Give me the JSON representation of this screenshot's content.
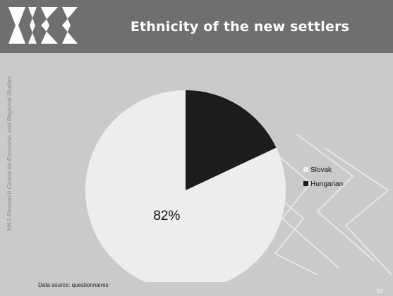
{
  "header": {
    "title": "Ethnicity of the new settlers"
  },
  "side_caption": "HAS Research Centre for Economic and Regional Studies",
  "footer": {
    "source": "Data source: questionnaires",
    "page_number": "10"
  },
  "colors": {
    "header_bg": "#6f6f6f",
    "slide_bg": "#cacaca",
    "slovak": "#ededed",
    "hungarian": "#1c1c1c"
  },
  "logo_icon": "rkk-logo-icon",
  "chart_data": {
    "type": "pie",
    "title": "",
    "categories": [
      "Slovak",
      "Hungarian"
    ],
    "values": [
      82,
      18
    ],
    "labels": [
      "82%",
      ""
    ],
    "colors": [
      "#ededed",
      "#1c1c1c"
    ],
    "legend": "right"
  }
}
